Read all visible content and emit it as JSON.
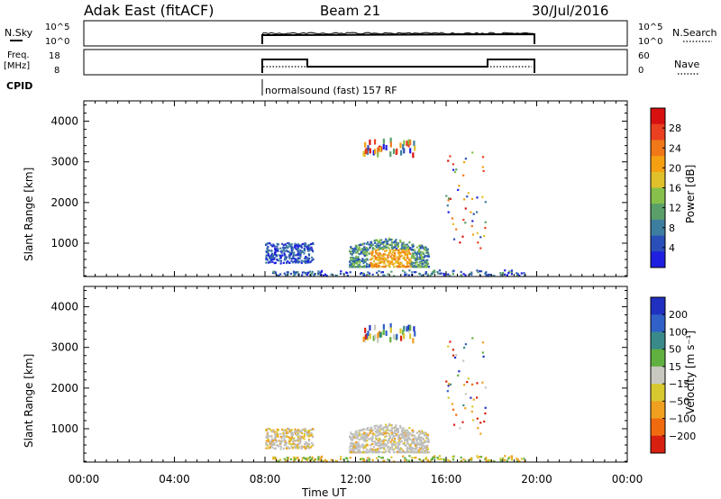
{
  "header": {
    "station": "Adak East (fitACF)",
    "beam": "Beam 21",
    "date": "30/Jul/2016"
  },
  "strips": {
    "nsky_label": "N.Sky",
    "nsky_ticks": [
      "10^5",
      "10^0"
    ],
    "nsearch_label": "N.Search",
    "freq_label_1": "Freq.",
    "freq_label_2": "[MHz]",
    "freq_ticks": [
      "18",
      "8"
    ],
    "nave_ticks": [
      "60",
      "0"
    ],
    "nave_label": "Nave",
    "cpid_label": "CPID",
    "cpid_text": "normalsound (fast) 157 RF"
  },
  "colors": {
    "power": [
      "#1f1fe0",
      "#2a4fb8",
      "#3d7ea0",
      "#5a9e6a",
      "#86c04a",
      "#e0c02a",
      "#f5a012",
      "#f07818",
      "#e84020",
      "#d81010"
    ],
    "velocity": [
      "#2030c0",
      "#3060c8",
      "#3a8a8a",
      "#60b040",
      "#c8c8c0",
      "#d8c830",
      "#f0a020",
      "#f06a10",
      "#d82010"
    ],
    "ground": "#bebebe"
  },
  "chart_data": [
    {
      "type": "heatmap",
      "name": "Power",
      "ylabel": "Slant Range [km]",
      "xlabel": "",
      "xlim": [
        0,
        24
      ],
      "ylim": [
        180,
        4500
      ],
      "x_tick_labels": [
        "00:00",
        "04:00",
        "08:00",
        "12:00",
        "16:00",
        "20:00",
        "00:00"
      ],
      "y_tick_labels": [
        "1000",
        "2000",
        "3000",
        "4000"
      ],
      "colorbar": {
        "label": "Power [dB]",
        "ticks": [
          "4",
          "8",
          "12",
          "16",
          "20",
          "24",
          "28"
        ]
      },
      "data_window_ut": [
        8,
        20
      ]
    },
    {
      "type": "heatmap",
      "name": "Velocity",
      "ylabel": "Slant Range [km]",
      "xlabel": "Time UT",
      "xlim": [
        0,
        24
      ],
      "ylim": [
        180,
        4500
      ],
      "x_tick_labels": [
        "00:00",
        "04:00",
        "08:00",
        "12:00",
        "16:00",
        "20:00",
        "00:00"
      ],
      "y_tick_labels": [
        "1000",
        "2000",
        "3000",
        "4000"
      ],
      "colorbar": {
        "label": "Velocity [m s⁻¹]",
        "ticks": [
          "200",
          "100",
          "50",
          "15",
          "−15",
          "−50",
          "−100",
          "−200"
        ]
      },
      "data_window_ut": [
        8,
        20
      ]
    }
  ]
}
